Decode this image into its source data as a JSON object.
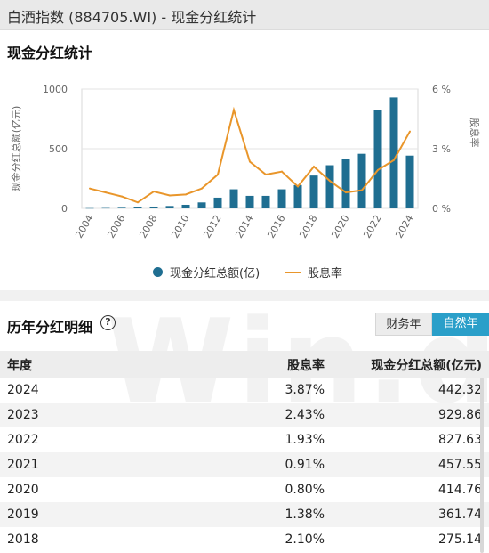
{
  "window": {
    "title": "白酒指数 (884705.WI) - 现金分红统计"
  },
  "chart_section": {
    "title": "现金分红统计"
  },
  "chart_data": {
    "type": "bar",
    "categories": [
      "2004",
      "2005",
      "2006",
      "2007",
      "2008",
      "2009",
      "2010",
      "2011",
      "2012",
      "2013",
      "2014",
      "2015",
      "2016",
      "2017",
      "2018",
      "2019",
      "2020",
      "2021",
      "2022",
      "2023",
      "2024"
    ],
    "x_tick_labels": [
      "2004",
      "2006",
      "2008",
      "2010",
      "2012",
      "2014",
      "2016",
      "2018",
      "2020",
      "2022",
      "2024"
    ],
    "series": [
      {
        "name": "现金分红总额(亿)",
        "type": "bar",
        "axis": "left",
        "color": "#1f6e91",
        "values": [
          2,
          3,
          5,
          10,
          15,
          20,
          30,
          50,
          90,
          160,
          105,
          105,
          160,
          195,
          275.14,
          361.74,
          414.76,
          457.55,
          827.63,
          929.86,
          442.32
        ]
      },
      {
        "name": "股息率",
        "type": "line",
        "axis": "right",
        "color": "#e9962b",
        "values": [
          1.0,
          0.8,
          0.6,
          0.3,
          0.85,
          0.65,
          0.7,
          1.0,
          1.7,
          4.95,
          2.35,
          1.7,
          1.85,
          1.1,
          2.1,
          1.38,
          0.8,
          0.91,
          1.93,
          2.43,
          3.87
        ]
      }
    ],
    "y_left": {
      "label": "现金分红总额(亿元)",
      "ticks": [
        "0",
        "500",
        "1000"
      ],
      "range": [
        0,
        1000
      ]
    },
    "y_right": {
      "label": "股息率",
      "ticks": [
        "0 %",
        "3 %",
        "6 %"
      ],
      "range": [
        0,
        6
      ]
    },
    "grid": true,
    "legend_position": "bottom"
  },
  "legend": {
    "bar_label": "现金分红总额(亿)",
    "line_label": "股息率"
  },
  "table_section": {
    "title": "历年分红明细",
    "help_icon": "?",
    "toggle_fiscal": "财务年",
    "toggle_natural": "自然年",
    "headers": {
      "year": "年度",
      "yield": "股息率",
      "total": "现金分红总额(亿元)"
    },
    "rows": [
      {
        "year": "2024",
        "yield": "3.87%",
        "total": "442.32"
      },
      {
        "year": "2023",
        "yield": "2.43%",
        "total": "929.86"
      },
      {
        "year": "2022",
        "yield": "1.93%",
        "total": "827.63"
      },
      {
        "year": "2021",
        "yield": "0.91%",
        "total": "457.55"
      },
      {
        "year": "2020",
        "yield": "0.80%",
        "total": "414.76"
      },
      {
        "year": "2019",
        "yield": "1.38%",
        "total": "361.74"
      },
      {
        "year": "2018",
        "yield": "2.10%",
        "total": "275.14"
      }
    ]
  },
  "watermark": {
    "text": "Win.d"
  }
}
